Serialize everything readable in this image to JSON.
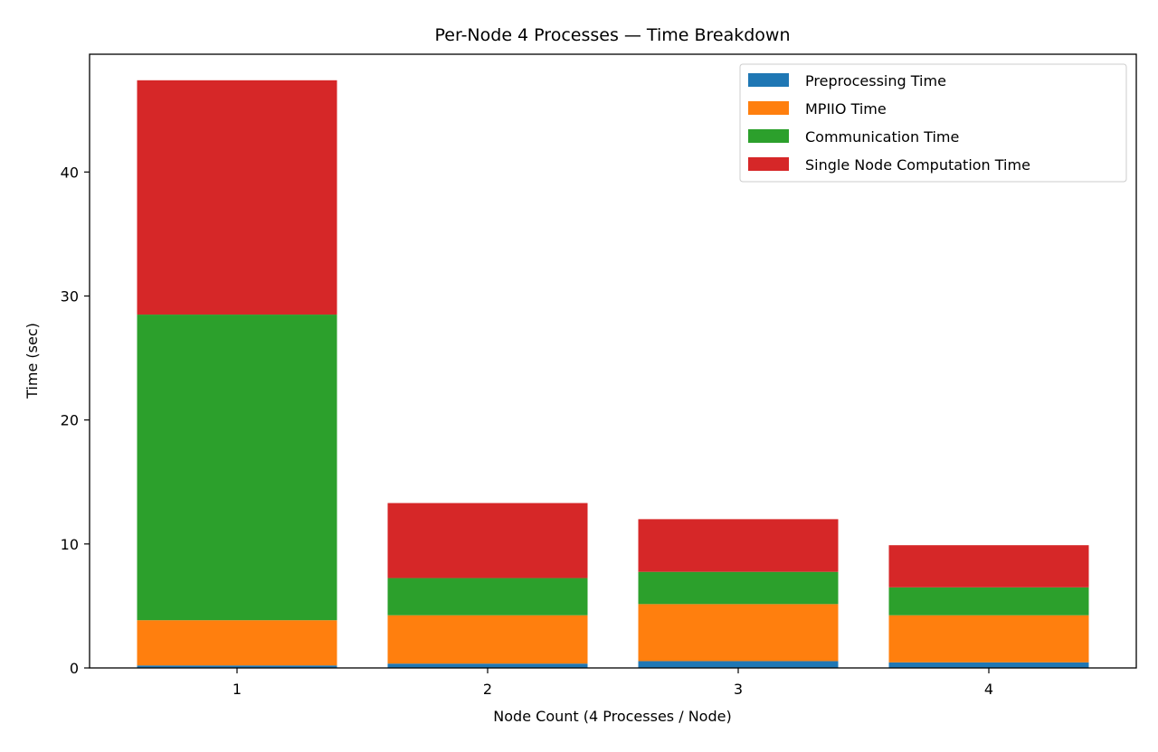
{
  "chart_data": {
    "type": "bar",
    "stacked": true,
    "title": "Per-Node 4 Processes — Time Breakdown",
    "xlabel": "Node Count (4 Processes / Node)",
    "ylabel": "Time (sec)",
    "categories": [
      "1",
      "2",
      "3",
      "4"
    ],
    "ylim": [
      0,
      49.5
    ],
    "yticks": [
      "0",
      "10",
      "20",
      "30",
      "40"
    ],
    "legend_position": "top-right",
    "grid": false,
    "series": [
      {
        "name": "Preprocessing Time",
        "color": "#1f77b4",
        "values": [
          0.2,
          0.35,
          0.55,
          0.45
        ]
      },
      {
        "name": "MPIIO Time",
        "color": "#ff7f0e",
        "values": [
          3.65,
          3.9,
          4.6,
          3.8
        ]
      },
      {
        "name": "Communication Time",
        "color": "#2ca02c",
        "values": [
          24.65,
          3.0,
          2.6,
          2.25
        ]
      },
      {
        "name": "Single Node Computation Time",
        "color": "#d62728",
        "values": [
          18.9,
          6.05,
          4.25,
          3.4
        ]
      }
    ]
  }
}
